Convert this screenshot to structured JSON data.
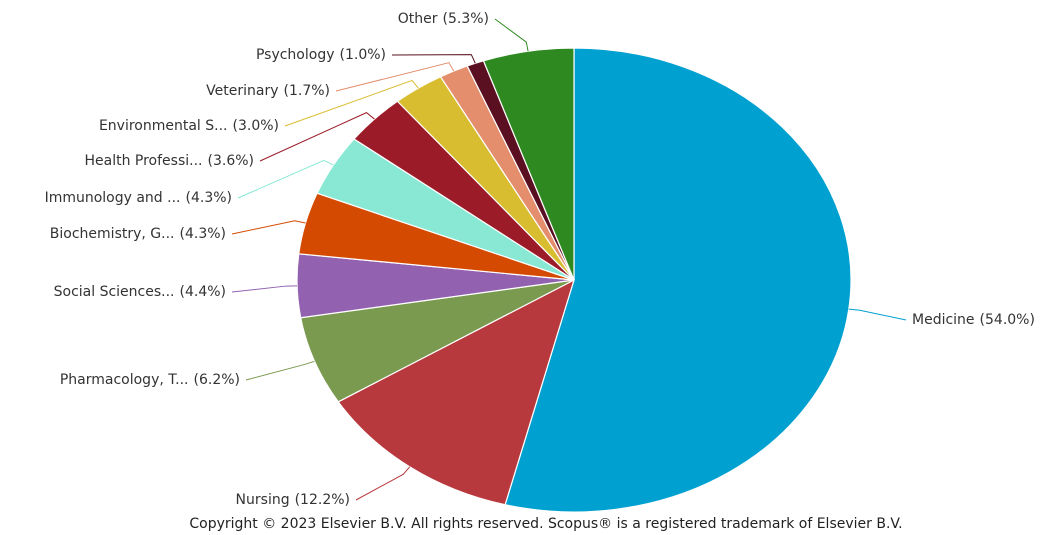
{
  "chart_data": {
    "type": "pie",
    "categories": [
      "Medicine",
      "Nursing",
      "Pharmacology, T...",
      "Social Sciences...",
      "Biochemistry, G...",
      "Immunology and ...",
      "Health Professi...",
      "Environmental S...",
      "Veterinary",
      "Psychology",
      "Other"
    ],
    "values": [
      54.0,
      12.2,
      6.2,
      4.4,
      4.3,
      4.3,
      3.6,
      3.0,
      1.7,
      1.0,
      5.3
    ],
    "value_labels": [
      "(54.0%)",
      "(12.2%)",
      "(6.2%)",
      "(4.4%)",
      "(4.3%)",
      "(4.3%)",
      "(3.6%)",
      "(3.0%)",
      "(1.7%)",
      "(1.0%)",
      "(5.3%)"
    ],
    "colors": [
      "#00a0d0",
      "#b8393d",
      "#7a9a50",
      "#9262b0",
      "#d44a00",
      "#88e8d4",
      "#9b1c28",
      "#d9bd30",
      "#e48e6e",
      "#5a1020",
      "#2e8a20"
    ],
    "footer": "Copyright © 2023 Elsevier B.V. All rights reserved. Scopus® is a registered trademark of Elsevier B.V."
  }
}
